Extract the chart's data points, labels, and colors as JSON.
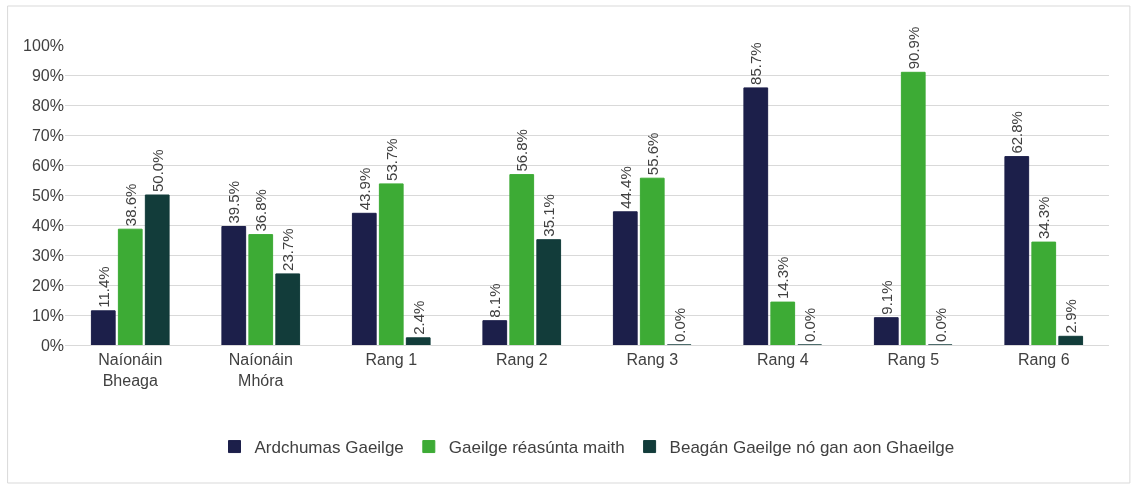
{
  "chart_data": {
    "type": "bar",
    "categories": [
      "Naíonáin\nBheaga",
      "Naíonáin\nMhóra",
      "Rang 1",
      "Rang 2",
      "Rang 3",
      "Rang 4",
      "Rang 5",
      "Rang 6"
    ],
    "series": [
      {
        "name": "Ardchumas Gaeilge",
        "color": "#1c1f4a",
        "values": [
          11.4,
          39.5,
          43.9,
          8.1,
          44.4,
          85.7,
          9.1,
          62.8
        ],
        "value_labels": [
          "11.4%",
          "39.5%",
          "43.9%",
          "8.1%",
          "44.4%",
          "85.7%",
          "9.1%",
          "62.8%"
        ]
      },
      {
        "name": "Gaeilge réasúnta maith",
        "color": "#3dab35",
        "values": [
          38.6,
          36.8,
          53.7,
          56.8,
          55.6,
          14.3,
          90.9,
          34.3
        ],
        "value_labels": [
          "38.6%",
          "36.8%",
          "53.7%",
          "56.8%",
          "55.6%",
          "14.3%",
          "90.9%",
          "34.3%"
        ]
      },
      {
        "name": "Beagán Gaeilge nó gan aon Ghaeilge",
        "color": "#123c3a",
        "values": [
          50.0,
          23.7,
          2.4,
          35.1,
          0.0,
          0.0,
          0.0,
          2.9
        ],
        "value_labels": [
          "50.0%",
          "23.7%",
          "2.4%",
          "35.1%",
          "0.0%",
          "0.0%",
          "0.0%",
          "2.9%"
        ]
      }
    ],
    "ylim": [
      0,
      100
    ],
    "yticks": [
      {
        "value": 0,
        "label": "0%"
      },
      {
        "value": 10,
        "label": "10%"
      },
      {
        "value": 20,
        "label": "20%"
      },
      {
        "value": 30,
        "label": "30%"
      },
      {
        "value": 40,
        "label": "40%"
      },
      {
        "value": 50,
        "label": "50%"
      },
      {
        "value": 60,
        "label": "60%"
      },
      {
        "value": 70,
        "label": "70%"
      },
      {
        "value": 80,
        "label": "80%"
      },
      {
        "value": 90,
        "label": "90%"
      },
      {
        "value": 100,
        "label": "100%"
      }
    ],
    "grid": "y",
    "legend": "bottom"
  }
}
